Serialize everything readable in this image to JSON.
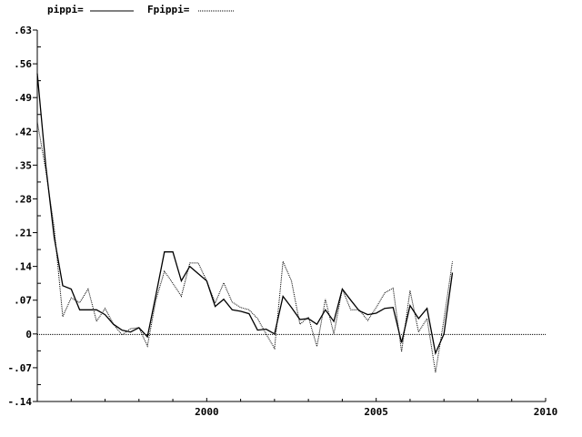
{
  "chart_data": {
    "type": "line",
    "title": "",
    "xlabel": "",
    "ylabel": "",
    "xlim": [
      1995,
      2010
    ],
    "ylim": [
      -0.14,
      0.63
    ],
    "x_ticks": [
      2000,
      2005,
      2010
    ],
    "x_tick_labels": [
      "2000",
      "2005",
      "2010"
    ],
    "y_ticks": [
      -0.14,
      -0.07,
      0,
      0.07,
      0.14,
      0.21,
      0.28,
      0.35,
      0.42,
      0.49,
      0.56,
      0.63
    ],
    "y_tick_labels": [
      "-.14",
      "-.07",
      "0",
      ".07",
      ".14",
      ".21",
      ".28",
      ".35",
      ".42",
      ".49",
      ".56",
      ".63"
    ],
    "grid": false,
    "zero_line": true,
    "legend_position": "top",
    "x": [
      1995.0,
      1995.25,
      1995.5,
      1995.75,
      1996.0,
      1996.25,
      1996.5,
      1996.75,
      1997.0,
      1997.25,
      1997.5,
      1997.75,
      1998.0,
      1998.25,
      1998.5,
      1998.75,
      1999.0,
      1999.25,
      1999.5,
      1999.75,
      2000.0,
      2000.25,
      2000.5,
      2000.75,
      2001.0,
      2001.25,
      2001.5,
      2001.75,
      2002.0,
      2002.25,
      2002.5,
      2002.75,
      2003.0,
      2003.25,
      2003.5,
      2003.75,
      2004.0,
      2004.25,
      2004.5,
      2004.75,
      2005.0,
      2005.25,
      2005.5,
      2005.75,
      2006.0,
      2006.25,
      2006.5,
      2006.75,
      2007.0,
      2007.25
    ],
    "series": [
      {
        "name": "pippi",
        "legend_label": "pippi=",
        "style": "solid",
        "color": "#000000",
        "values": [
          0.54,
          0.35,
          0.2,
          0.1,
          0.093,
          0.05,
          0.05,
          0.05,
          0.04,
          0.02,
          0.008,
          0.004,
          0.013,
          -0.006,
          0.08,
          0.17,
          0.17,
          0.11,
          0.14,
          0.125,
          0.11,
          0.057,
          0.072,
          0.05,
          0.047,
          0.042,
          0.008,
          0.01,
          0.0,
          0.078,
          0.055,
          0.03,
          0.032,
          0.02,
          0.05,
          0.026,
          0.093,
          0.07,
          0.048,
          0.04,
          0.043,
          0.053,
          0.055,
          -0.018,
          0.059,
          0.032,
          0.053,
          -0.04,
          0.0,
          0.127
        ]
      },
      {
        "name": "Fpippi",
        "legend_label": "Fpippi=",
        "style": "dotted",
        "color": "#000000",
        "values": [
          0.44,
          0.34,
          0.22,
          0.036,
          0.075,
          0.065,
          0.093,
          0.026,
          0.053,
          0.02,
          -0.002,
          0.011,
          0.013,
          -0.025,
          0.07,
          0.13,
          0.105,
          0.078,
          0.147,
          0.147,
          0.11,
          0.064,
          0.106,
          0.066,
          0.055,
          0.05,
          0.032,
          0.0,
          -0.03,
          0.15,
          0.11,
          0.02,
          0.035,
          -0.026,
          0.072,
          0.0,
          0.093,
          0.05,
          0.05,
          0.028,
          0.055,
          0.085,
          0.095,
          -0.037,
          0.09,
          0.004,
          0.032,
          -0.08,
          0.03,
          0.15
        ]
      }
    ]
  }
}
